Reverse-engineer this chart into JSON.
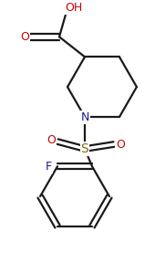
{
  "background_color": "#ffffff",
  "line_color": "#1a1a1a",
  "heteroatom_color": "#1a1a8c",
  "oxygen_color": "#cc0000",
  "fluorine_color": "#1a1a8c",
  "sulfur_color": "#8b6914",
  "line_width": 1.6,
  "figsize": [
    1.7,
    2.88
  ],
  "dpi": 100,
  "xlim": [
    0,
    170
  ],
  "ylim": [
    0,
    288
  ]
}
